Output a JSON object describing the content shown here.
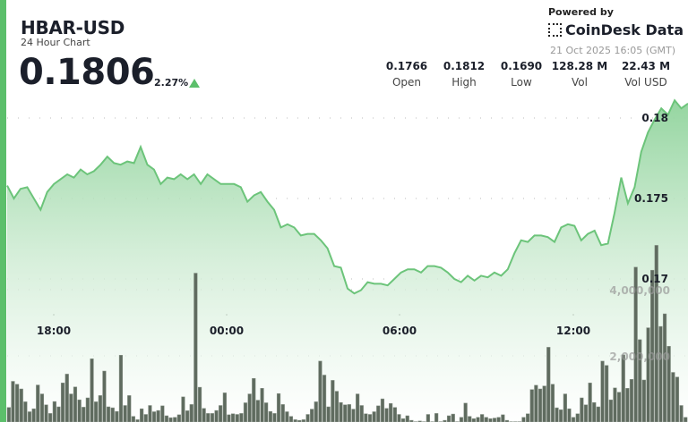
{
  "header": {
    "symbol": "HBAR-USD",
    "subtitle": "24 Hour Chart",
    "price": "0.1806",
    "change": "2.27%",
    "direction": "up"
  },
  "branding": {
    "powered_by": "Powered by",
    "name": "CoinDesk Data",
    "timestamp": "21 Oct 2025 16:05 (GMT)"
  },
  "stats": [
    {
      "value": "0.1766",
      "label": "Open"
    },
    {
      "value": "0.1812",
      "label": "High"
    },
    {
      "value": "0.1690",
      "label": "Low"
    },
    {
      "value": "128.28 M",
      "label": "Vol"
    },
    {
      "value": "22.43 M",
      "label": "Vol USD"
    }
  ],
  "colors": {
    "accent": "#5cbf6b",
    "line": "#6cc47a",
    "volume_bar": "#5f6b5f",
    "fill_top": "#8fd39b"
  },
  "chart_data": {
    "type": "line",
    "title": "",
    "xlabel": "",
    "ylabel": "",
    "x_ticks": [
      "18:00",
      "00:00",
      "06:00",
      "12:00"
    ],
    "y_ticks": [
      "0.18",
      "0.175",
      "0.17"
    ],
    "y_tick_values": [
      0.18,
      0.175,
      0.17
    ],
    "ylim": [
      0.1675,
      0.1815
    ],
    "grid": true,
    "price": [
      0.1758,
      0.175,
      0.1756,
      0.1757,
      0.175,
      0.1743,
      0.1754,
      0.1759,
      0.1762,
      0.1765,
      0.1763,
      0.1768,
      0.1765,
      0.1767,
      0.1771,
      0.1776,
      0.1772,
      0.1771,
      0.1773,
      0.1772,
      0.1782,
      0.1771,
      0.1768,
      0.1759,
      0.1763,
      0.1762,
      0.1765,
      0.1762,
      0.1765,
      0.1759,
      0.1765,
      0.1762,
      0.1759,
      0.1759,
      0.1759,
      0.1757,
      0.1748,
      0.1752,
      0.1754,
      0.1748,
      0.1743,
      0.1732,
      0.1734,
      0.1732,
      0.1727,
      0.1728,
      0.1728,
      0.1724,
      0.1719,
      0.1708,
      0.1707,
      0.1694,
      0.1691,
      0.1693,
      0.1698,
      0.1697,
      0.1697,
      0.1696,
      0.17,
      0.1704,
      0.1706,
      0.1706,
      0.1704,
      0.1708,
      0.1708,
      0.1707,
      0.1704,
      0.17,
      0.1698,
      0.1702,
      0.1699,
      0.1702,
      0.1701,
      0.1704,
      0.1702,
      0.1706,
      0.1716,
      0.1724,
      0.1723,
      0.1727,
      0.1727,
      0.1726,
      0.1723,
      0.1732,
      0.1734,
      0.1733,
      0.1724,
      0.1728,
      0.173,
      0.1721,
      0.1722,
      0.1741,
      0.1763,
      0.1747,
      0.1757,
      0.1779,
      0.1791,
      0.1799,
      0.1806,
      0.1802,
      0.1811,
      0.1806,
      0.1809
    ],
    "volume_ticks": [
      "4,000,000",
      "2,000,000"
    ],
    "volume_tick_values": [
      4000000,
      2000000
    ],
    "volume_millions": [
      0.44,
      1.23,
      1.14,
      1.0,
      0.61,
      0.31,
      0.4,
      1.12,
      0.85,
      0.52,
      0.26,
      0.62,
      0.46,
      1.18,
      1.45,
      0.85,
      1.06,
      0.67,
      0.45,
      0.73,
      1.91,
      0.61,
      0.8,
      1.54,
      0.46,
      0.43,
      0.32,
      2.02,
      0.5,
      0.8,
      0.17,
      0.07,
      0.4,
      0.23,
      0.5,
      0.31,
      0.35,
      0.49,
      0.19,
      0.13,
      0.14,
      0.22,
      0.76,
      0.34,
      0.53,
      4.5,
      1.05,
      0.41,
      0.26,
      0.26,
      0.35,
      0.5,
      0.88,
      0.22,
      0.25,
      0.23,
      0.26,
      0.58,
      0.85,
      1.32,
      0.66,
      1.02,
      0.58,
      0.32,
      0.26,
      0.86,
      0.53,
      0.31,
      0.17,
      0.07,
      0.05,
      0.07,
      0.23,
      0.39,
      0.61,
      1.84,
      1.42,
      0.46,
      1.26,
      0.93,
      0.59,
      0.52,
      0.53,
      0.39,
      0.85,
      0.5,
      0.25,
      0.23,
      0.31,
      0.49,
      0.7,
      0.41,
      0.56,
      0.44,
      0.23,
      0.1,
      0.19,
      0.05,
      0.01,
      0.03,
      0.01,
      0.23,
      0.01,
      0.26,
      0.01,
      0.05,
      0.19,
      0.24,
      0.01,
      0.14,
      0.57,
      0.17,
      0.1,
      0.14,
      0.23,
      0.14,
      0.1,
      0.12,
      0.14,
      0.22,
      0.05,
      0.01,
      0.01,
      0.01,
      0.14,
      0.25,
      0.98,
      1.11,
      1.0,
      1.09,
      2.26,
      1.14,
      0.43,
      0.37,
      0.85,
      0.4,
      0.14,
      0.25,
      0.73,
      0.52,
      1.18,
      0.59,
      0.46,
      1.84,
      1.71,
      0.67,
      1.03,
      0.9,
      2.03,
      1.02,
      1.29,
      4.68,
      2.49,
      1.27,
      2.85,
      4.59,
      5.34,
      2.89,
      3.27,
      2.29,
      1.5,
      1.36,
      0.5,
      0.14
    ]
  }
}
